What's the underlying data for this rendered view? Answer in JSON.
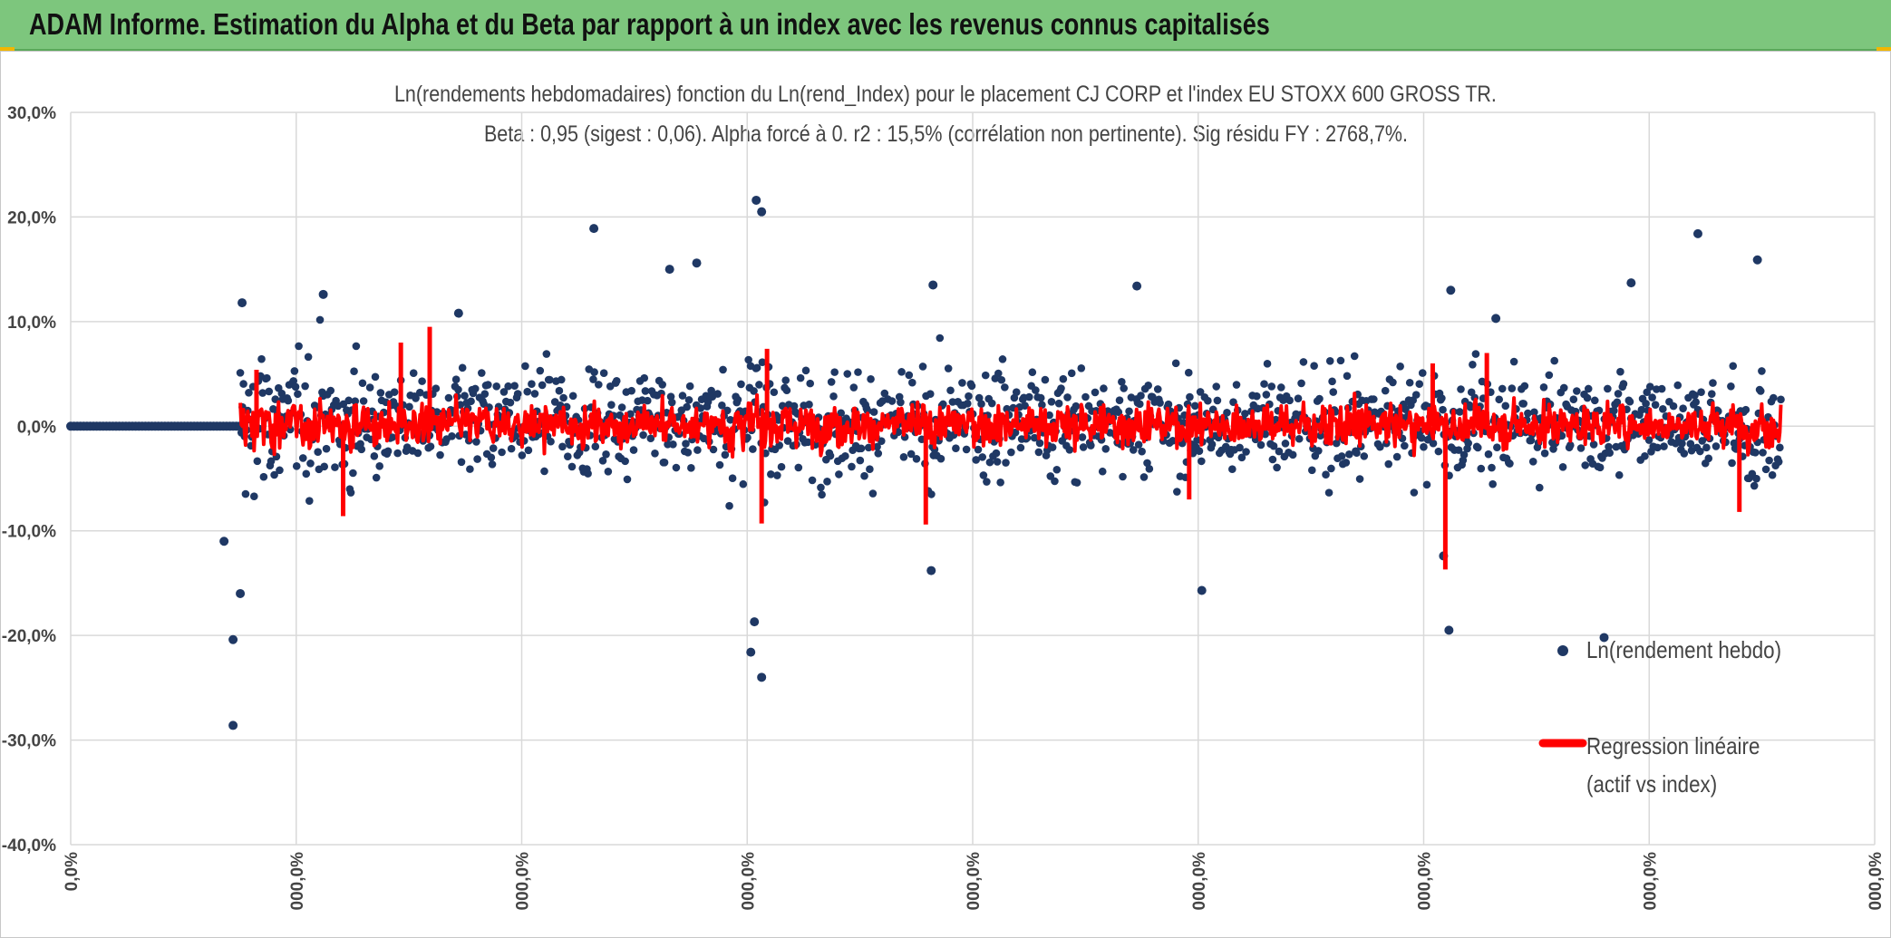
{
  "header": {
    "title": "ADAM Informe. Estimation du Alpha et du Beta par rapport à un index avec les revenus connus capitalisés"
  },
  "colors": {
    "banner": "#7dc67d",
    "scatter": "#1f3864",
    "regression": "#ff0000",
    "grid": "#d9d9d9",
    "corner_accent": "#f2b600"
  },
  "chart_data": {
    "type": "scatter",
    "title": "Ln(rendements hebdomadaires) fonction du Ln(rend_Index) pour le placement CJ CORP et l'index EU STOXX 600 GROSS TR.",
    "subtitle": "Beta : 0,95 (sigest : 0,06). Alpha forcé à 0. r2 : 15,5% (corrélation non pertinente). Sig résidu FY : 2768,7%.",
    "xlabel": "",
    "ylabel": "",
    "ylim": [
      -40,
      30
    ],
    "y_tick_labels": [
      "30,0%",
      "20,0%",
      "10,0%",
      "0,0%",
      "-10,0%",
      "-20,0%",
      "-30,0%",
      "-40,0%"
    ],
    "x_tick_labels": [
      "0,0%",
      "000,0%",
      "000,0%",
      "000,0%",
      "000,0%",
      "000,0%",
      "000,0%",
      "000,0%",
      "000,0%"
    ],
    "grid": true,
    "legend_position": "right",
    "series": [
      {
        "name": "Ln(rendement hebdo)",
        "kind": "scatter",
        "note_values": "dense cloud mostly within ±8%, with scattered outliers",
        "highlight_points": [
          {
            "x": 0.09,
            "y": -28.6
          },
          {
            "x": 0.09,
            "y": -20.4
          },
          {
            "x": 0.095,
            "y": 11.8
          },
          {
            "x": 0.094,
            "y": -16.0
          },
          {
            "x": 0.085,
            "y": -11.0
          },
          {
            "x": 0.14,
            "y": 12.6
          },
          {
            "x": 0.215,
            "y": 10.8
          },
          {
            "x": 0.29,
            "y": 18.9
          },
          {
            "x": 0.38,
            "y": 21.6
          },
          {
            "x": 0.383,
            "y": 20.5
          },
          {
            "x": 0.377,
            "y": -21.6
          },
          {
            "x": 0.383,
            "y": -24.0
          },
          {
            "x": 0.379,
            "y": -18.7
          },
          {
            "x": 0.347,
            "y": 15.6
          },
          {
            "x": 0.332,
            "y": 15.0
          },
          {
            "x": 0.478,
            "y": 13.5
          },
          {
            "x": 0.477,
            "y": -13.8
          },
          {
            "x": 0.591,
            "y": 13.4
          },
          {
            "x": 0.627,
            "y": -15.7
          },
          {
            "x": 0.765,
            "y": 13.0
          },
          {
            "x": 0.764,
            "y": -19.5
          },
          {
            "x": 0.761,
            "y": -12.4
          },
          {
            "x": 0.902,
            "y": 18.4
          },
          {
            "x": 0.935,
            "y": 15.9
          },
          {
            "x": 0.865,
            "y": 13.7
          },
          {
            "x": 0.85,
            "y": -20.2
          },
          {
            "x": 0.79,
            "y": 10.3
          }
        ]
      },
      {
        "name": "Regression linéaire\n(actif vs index)",
        "kind": "line",
        "note_values": "fitted values mostly within ±5%, spikes to -13.7% and +9.5%"
      }
    ],
    "zero_run": {
      "x_start": 0.0,
      "x_end": 0.094,
      "y": 0.0
    }
  }
}
